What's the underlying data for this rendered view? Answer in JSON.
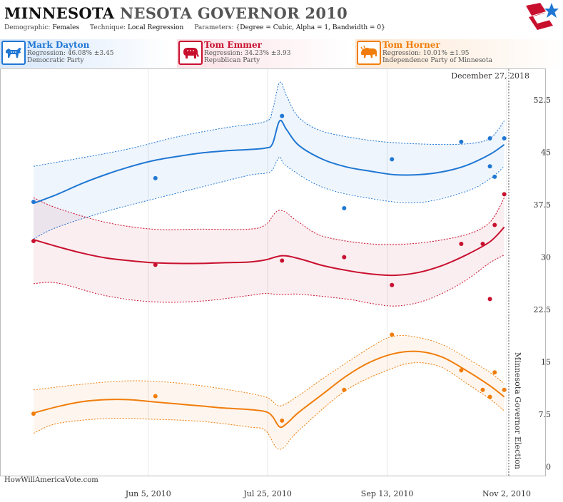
{
  "header": {
    "title_bold": "MINNESOTA",
    "title_rest": "NESOTA GOVERNOR 2010",
    "demographic_label": "Demographic:",
    "demographic_value": "Females",
    "technique_label": "Technique:",
    "technique_value": "Local Regression",
    "parameters_label": "Parameters:",
    "parameters_value": "{Degree = Cubic, Alpha = 1, Bandwidth = 0}"
  },
  "candidates": [
    {
      "name": "Mark Dayton",
      "regression": "Regression: 46.08% ±3.45",
      "party": "Democratic Party",
      "color": "#1f77d4",
      "icon": "donkey-icon"
    },
    {
      "name": "Tom Emmer",
      "regression": "Regression: 34.23% ±3.93",
      "party": "Republican Party",
      "color": "#c8102e",
      "icon": "elephant-icon"
    },
    {
      "name": "Tom Horner",
      "regression": "Regression: 10.01% ±1.95",
      "party": "Independence Party  of Minnesota",
      "color": "#f07d0b",
      "icon": "bison-icon"
    }
  ],
  "chart_data": {
    "type": "line",
    "date_label": "December 27, 2018",
    "watermark": "HowWillAmericaVote.com",
    "election_label": "Minnesota Governor Election",
    "election_date": "2010-11-02",
    "x_range": [
      "2010-04-18",
      "2010-11-02"
    ],
    "x_ticks": [
      {
        "date": "2010-06-05",
        "label": "Jun 5, 2010"
      },
      {
        "date": "2010-07-25",
        "label": "Jul 25, 2010"
      },
      {
        "date": "2010-09-13",
        "label": "Sep 13, 2010"
      },
      {
        "date": "2010-11-02",
        "label": "Nov 2, 2010"
      }
    ],
    "y_ticks": [
      0,
      7.5,
      15,
      22.5,
      30,
      37.5,
      45,
      52.5
    ],
    "y_tick_labels": [
      "0",
      "7.5",
      "15",
      "22.5",
      "30",
      "37.5",
      "45",
      "52.5"
    ],
    "ylim": [
      -3,
      57
    ],
    "series": [
      {
        "name": "Mark Dayton",
        "color": "#1f77d4",
        "trend": [
          [
            "2010-04-18",
            37.7
          ],
          [
            "2010-04-28",
            39.0
          ],
          [
            "2010-05-08",
            40.5
          ],
          [
            "2010-05-18",
            41.8
          ],
          [
            "2010-05-28",
            42.9
          ],
          [
            "2010-06-07",
            43.8
          ],
          [
            "2010-06-17",
            44.4
          ],
          [
            "2010-06-27",
            44.9
          ],
          [
            "2010-07-07",
            45.2
          ],
          [
            "2010-07-17",
            45.4
          ],
          [
            "2010-07-24",
            45.6
          ],
          [
            "2010-07-27",
            46.2
          ],
          [
            "2010-07-30",
            49.5
          ],
          [
            "2010-08-02",
            48.2
          ],
          [
            "2010-08-07",
            46.0
          ],
          [
            "2010-08-17",
            44.0
          ],
          [
            "2010-08-27",
            42.9
          ],
          [
            "2010-09-06",
            42.3
          ],
          [
            "2010-09-16",
            41.8
          ],
          [
            "2010-09-26",
            41.8
          ],
          [
            "2010-10-06",
            42.2
          ],
          [
            "2010-10-16",
            43.1
          ],
          [
            "2010-10-26",
            44.7
          ],
          [
            "2010-11-01",
            46.1
          ]
        ],
        "upper": [
          [
            "2010-04-18",
            43.0
          ],
          [
            "2010-05-08",
            44.2
          ],
          [
            "2010-05-28",
            45.5
          ],
          [
            "2010-06-17",
            47.2
          ],
          [
            "2010-07-07",
            48.5
          ],
          [
            "2010-07-24",
            49.4
          ],
          [
            "2010-07-27",
            51.0
          ],
          [
            "2010-07-30",
            55.0
          ],
          [
            "2010-08-02",
            53.0
          ],
          [
            "2010-08-07",
            50.0
          ],
          [
            "2010-08-17",
            48.0
          ],
          [
            "2010-09-06",
            46.7
          ],
          [
            "2010-09-26",
            46.2
          ],
          [
            "2010-10-16",
            46.2
          ],
          [
            "2010-10-26",
            47.0
          ],
          [
            "2010-11-01",
            49.5
          ]
        ],
        "lower": [
          [
            "2010-04-18",
            32.6
          ],
          [
            "2010-04-28",
            34.3
          ],
          [
            "2010-05-18",
            36.5
          ],
          [
            "2010-06-07",
            38.3
          ],
          [
            "2010-06-27",
            40.0
          ],
          [
            "2010-07-17",
            41.7
          ],
          [
            "2010-07-24",
            42.0
          ],
          [
            "2010-07-27",
            42.5
          ],
          [
            "2010-07-30",
            44.3
          ],
          [
            "2010-08-02",
            43.0
          ],
          [
            "2010-08-17",
            40.0
          ],
          [
            "2010-09-06",
            38.4
          ],
          [
            "2010-09-26",
            37.8
          ],
          [
            "2010-10-16",
            39.4
          ],
          [
            "2010-10-26",
            41.2
          ],
          [
            "2010-11-01",
            43.0
          ]
        ],
        "polls": [
          [
            "2010-04-18",
            37.9
          ],
          [
            "2010-06-08",
            41.3
          ],
          [
            "2010-07-31",
            50.2
          ],
          [
            "2010-08-26",
            37.0
          ],
          [
            "2010-09-15",
            44.0
          ],
          [
            "2010-10-14",
            46.5
          ],
          [
            "2010-10-26",
            47.0
          ],
          [
            "2010-10-28",
            41.5
          ],
          [
            "2010-10-26",
            43.0
          ],
          [
            "2010-11-01",
            47.0
          ]
        ]
      },
      {
        "name": "Tom Emmer",
        "color": "#c8102e",
        "trend": [
          [
            "2010-04-18",
            32.5
          ],
          [
            "2010-04-28",
            31.5
          ],
          [
            "2010-05-08",
            30.6
          ],
          [
            "2010-05-18",
            29.9
          ],
          [
            "2010-05-28",
            29.5
          ],
          [
            "2010-06-07",
            29.2
          ],
          [
            "2010-06-17",
            29.1
          ],
          [
            "2010-06-27",
            29.1
          ],
          [
            "2010-07-07",
            29.2
          ],
          [
            "2010-07-17",
            29.3
          ],
          [
            "2010-07-24",
            29.6
          ],
          [
            "2010-07-31",
            30.2
          ],
          [
            "2010-08-07",
            29.8
          ],
          [
            "2010-08-17",
            28.8
          ],
          [
            "2010-08-27",
            28.1
          ],
          [
            "2010-09-06",
            27.6
          ],
          [
            "2010-09-16",
            27.4
          ],
          [
            "2010-09-26",
            27.8
          ],
          [
            "2010-10-06",
            28.8
          ],
          [
            "2010-10-16",
            30.3
          ],
          [
            "2010-10-26",
            32.2
          ],
          [
            "2010-11-01",
            34.3
          ]
        ],
        "upper": [
          [
            "2010-04-18",
            38.5
          ],
          [
            "2010-04-28",
            37.0
          ],
          [
            "2010-05-18",
            35.0
          ],
          [
            "2010-06-07",
            34.0
          ],
          [
            "2010-06-27",
            34.0
          ],
          [
            "2010-07-17",
            34.0
          ],
          [
            "2010-07-24",
            34.6
          ],
          [
            "2010-07-30",
            36.7
          ],
          [
            "2010-08-07",
            35.0
          ],
          [
            "2010-08-17",
            33.0
          ],
          [
            "2010-09-06",
            31.9
          ],
          [
            "2010-09-26",
            32.0
          ],
          [
            "2010-10-16",
            33.2
          ],
          [
            "2010-10-26",
            35.0
          ],
          [
            "2010-11-01",
            38.5
          ]
        ],
        "lower": [
          [
            "2010-04-18",
            26.2
          ],
          [
            "2010-04-28",
            26.3
          ],
          [
            "2010-05-18",
            24.5
          ],
          [
            "2010-06-07",
            23.6
          ],
          [
            "2010-06-27",
            23.7
          ],
          [
            "2010-07-17",
            24.5
          ],
          [
            "2010-07-24",
            24.8
          ],
          [
            "2010-07-31",
            24.6
          ],
          [
            "2010-08-07",
            24.7
          ],
          [
            "2010-08-27",
            24.0
          ],
          [
            "2010-09-06",
            23.4
          ],
          [
            "2010-09-16",
            23.0
          ],
          [
            "2010-09-26",
            23.5
          ],
          [
            "2010-10-06",
            24.8
          ],
          [
            "2010-10-16",
            26.7
          ],
          [
            "2010-10-26",
            29.2
          ],
          [
            "2010-11-01",
            30.3
          ]
        ],
        "polls": [
          [
            "2010-04-18",
            32.3
          ],
          [
            "2010-06-08",
            28.9
          ],
          [
            "2010-07-31",
            29.5
          ],
          [
            "2010-08-26",
            30.0
          ],
          [
            "2010-09-15",
            26.0
          ],
          [
            "2010-10-14",
            31.9
          ],
          [
            "2010-10-23",
            31.9
          ],
          [
            "2010-10-26",
            24.0
          ],
          [
            "2010-10-28",
            34.6
          ],
          [
            "2010-11-01",
            39.0
          ]
        ]
      },
      {
        "name": "Tom Horner",
        "color": "#f07d0b",
        "trend": [
          [
            "2010-04-18",
            7.7
          ],
          [
            "2010-04-28",
            8.6
          ],
          [
            "2010-05-08",
            9.3
          ],
          [
            "2010-05-18",
            9.6
          ],
          [
            "2010-05-28",
            9.6
          ],
          [
            "2010-06-07",
            9.3
          ],
          [
            "2010-06-17",
            9.0
          ],
          [
            "2010-06-27",
            8.7
          ],
          [
            "2010-07-07",
            8.4
          ],
          [
            "2010-07-17",
            8.2
          ],
          [
            "2010-07-24",
            7.9
          ],
          [
            "2010-07-27",
            7.2
          ],
          [
            "2010-07-30",
            5.7
          ],
          [
            "2010-08-02",
            6.2
          ],
          [
            "2010-08-07",
            7.8
          ],
          [
            "2010-08-17",
            10.4
          ],
          [
            "2010-08-27",
            13.0
          ],
          [
            "2010-09-06",
            15.0
          ],
          [
            "2010-09-16",
            16.2
          ],
          [
            "2010-09-26",
            16.5
          ],
          [
            "2010-10-06",
            15.7
          ],
          [
            "2010-10-16",
            13.8
          ],
          [
            "2010-10-26",
            11.6
          ],
          [
            "2010-11-01",
            10.0
          ]
        ],
        "upper": [
          [
            "2010-04-18",
            11.0
          ],
          [
            "2010-05-08",
            11.8
          ],
          [
            "2010-05-28",
            12.3
          ],
          [
            "2010-06-17",
            12.0
          ],
          [
            "2010-07-07",
            11.1
          ],
          [
            "2010-07-24",
            10.0
          ],
          [
            "2010-07-30",
            8.7
          ],
          [
            "2010-08-07",
            10.2
          ],
          [
            "2010-08-17",
            12.6
          ],
          [
            "2010-09-06",
            17.1
          ],
          [
            "2010-09-16",
            18.7
          ],
          [
            "2010-09-26",
            18.5
          ],
          [
            "2010-10-06",
            17.5
          ],
          [
            "2010-10-16",
            15.6
          ],
          [
            "2010-10-26",
            13.5
          ],
          [
            "2010-11-01",
            11.9
          ]
        ],
        "lower": [
          [
            "2010-04-18",
            4.8
          ],
          [
            "2010-04-28",
            6.2
          ],
          [
            "2010-05-18",
            6.9
          ],
          [
            "2010-06-07",
            6.8
          ],
          [
            "2010-06-27",
            6.5
          ],
          [
            "2010-07-17",
            5.7
          ],
          [
            "2010-07-24",
            5.2
          ],
          [
            "2010-07-30",
            2.5
          ],
          [
            "2010-08-07",
            5.2
          ],
          [
            "2010-08-27",
            11.0
          ],
          [
            "2010-09-16",
            14.2
          ],
          [
            "2010-09-26",
            14.9
          ],
          [
            "2010-10-06",
            14.2
          ],
          [
            "2010-10-16",
            12.0
          ],
          [
            "2010-10-26",
            9.7
          ],
          [
            "2010-11-01",
            8.0
          ]
        ],
        "polls": [
          [
            "2010-04-18",
            7.6
          ],
          [
            "2010-06-08",
            10.1
          ],
          [
            "2010-07-31",
            6.6
          ],
          [
            "2010-08-26",
            11.0
          ],
          [
            "2010-09-15",
            18.9
          ],
          [
            "2010-10-14",
            13.8
          ],
          [
            "2010-10-23",
            11.0
          ],
          [
            "2010-10-26",
            10.0
          ],
          [
            "2010-10-28",
            13.5
          ],
          [
            "2010-11-01",
            11.0
          ]
        ]
      }
    ]
  }
}
